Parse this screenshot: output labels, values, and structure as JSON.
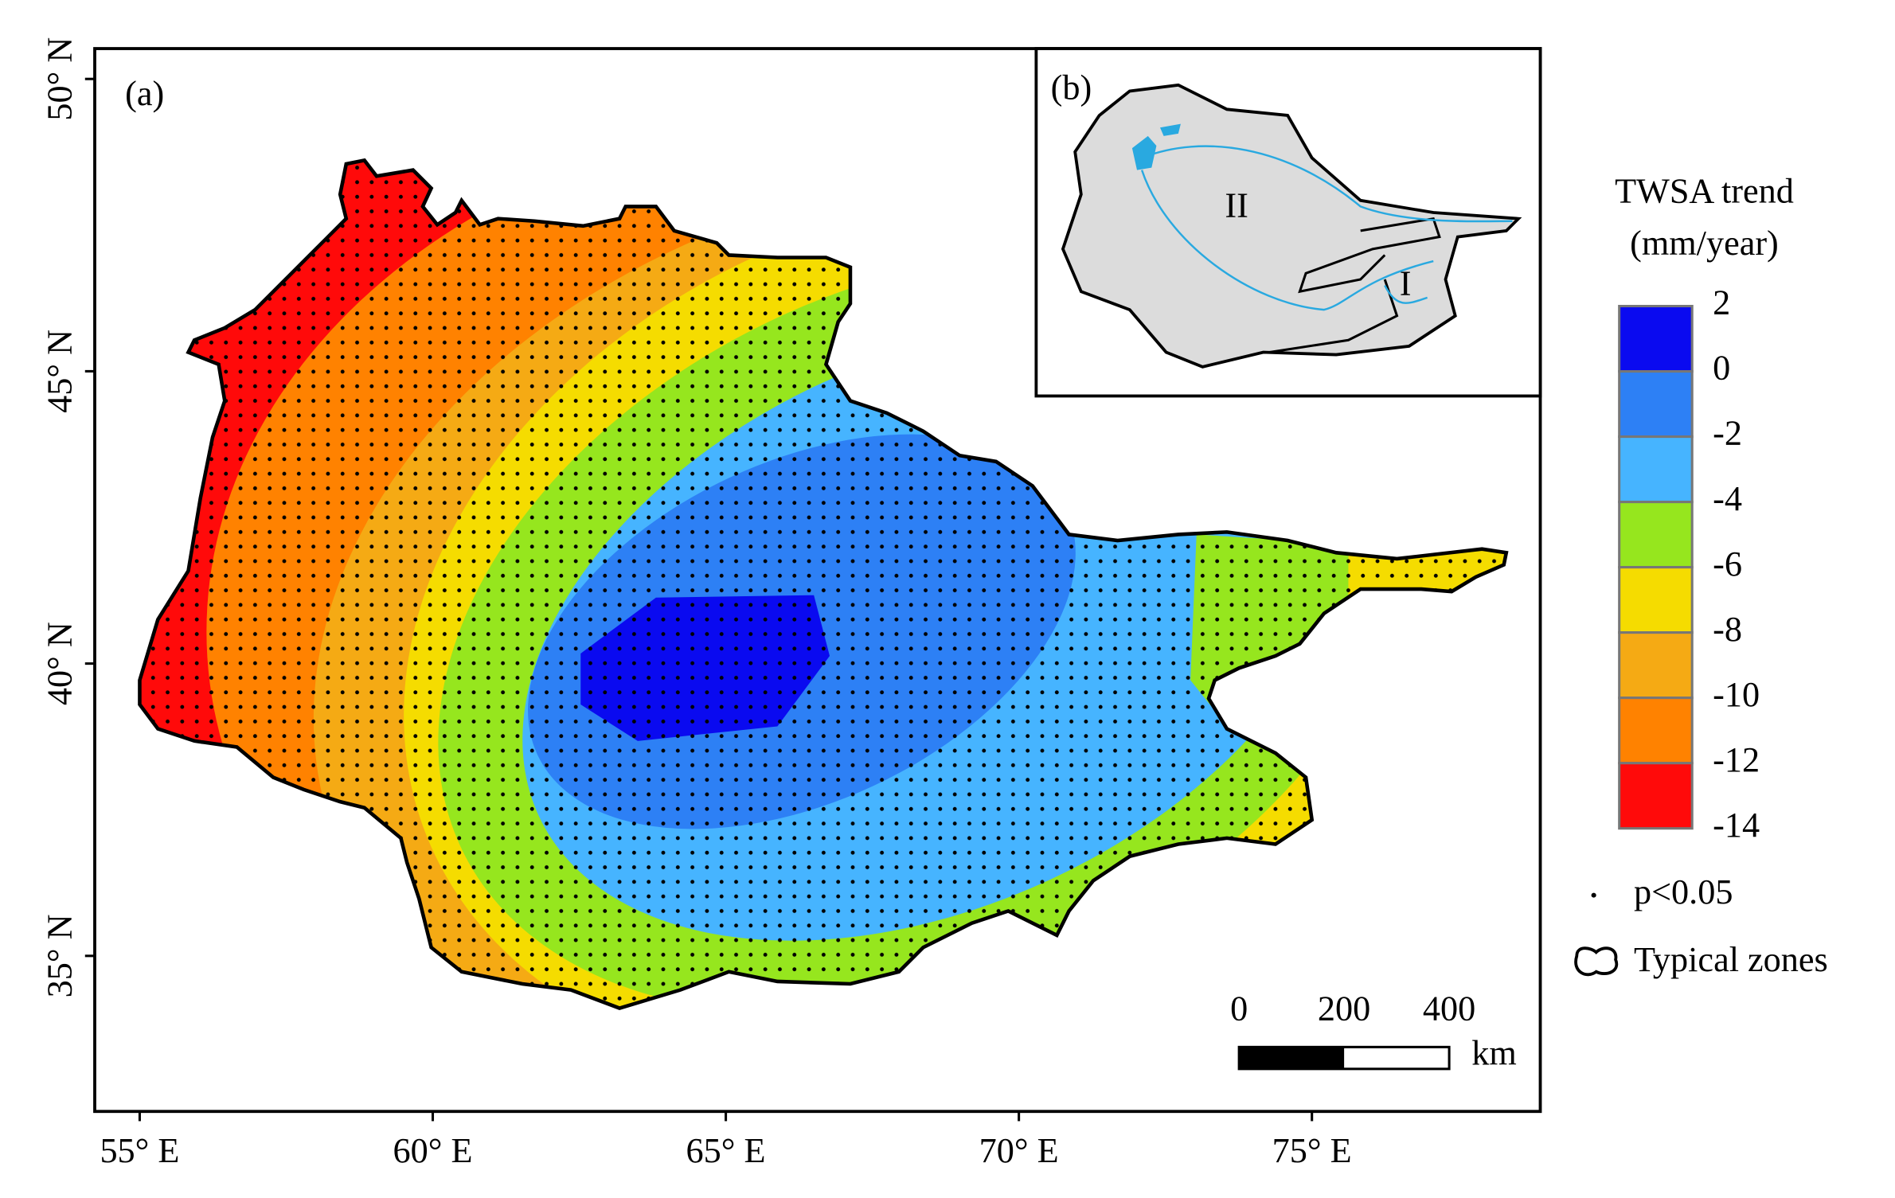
{
  "map": {
    "panel_label": "(a)",
    "lat_ticks": [
      {
        "value": 50,
        "label": "50° N"
      },
      {
        "value": 45,
        "label": "45° N"
      },
      {
        "value": 40,
        "label": "40° N"
      },
      {
        "value": 35,
        "label": "35° N"
      }
    ],
    "lon_ticks": [
      {
        "value": 55,
        "label": "55° E"
      },
      {
        "value": 60,
        "label": "60° E"
      },
      {
        "value": 65,
        "label": "65° E"
      },
      {
        "value": 70,
        "label": "70° E"
      },
      {
        "value": 75,
        "label": "75° E"
      }
    ]
  },
  "inset": {
    "panel_label": "(b)",
    "zones": [
      "II",
      "I"
    ]
  },
  "legend": {
    "title": [
      "TWSA trend",
      "(mm/year)"
    ],
    "bounds": [
      2,
      0,
      -2,
      -4,
      -6,
      -8,
      -10,
      -12,
      -14
    ],
    "colors": [
      "#0a0af0",
      "#2d80f5",
      "#46b4ff",
      "#96e61e",
      "#f5dc00",
      "#f5aa14",
      "#ff8200",
      "#ff0a0a"
    ],
    "significance": "p<0.05",
    "zones": "Typical zones"
  },
  "scale_bar": {
    "ticks": [
      0,
      200,
      400
    ],
    "unit": "km"
  }
}
